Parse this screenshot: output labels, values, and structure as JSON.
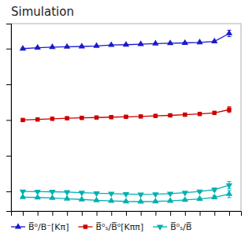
{
  "chart_data": {
    "type": "line",
    "title": "Simulation",
    "x": [
      0,
      1,
      2,
      3,
      4,
      5,
      6,
      7,
      8,
      9,
      10,
      11,
      12,
      13,
      14
    ],
    "xlim": [
      -0.8,
      14.8
    ],
    "ylim": [
      0.09,
      1.14
    ],
    "xticks": [
      0,
      1,
      2,
      3,
      4,
      5,
      6,
      7,
      8,
      9,
      10,
      11,
      12,
      13,
      14
    ],
    "yticks": [
      0.2,
      0.4,
      0.6,
      0.8,
      1.0
    ],
    "tick_labels": false,
    "grid": false,
    "series": [
      {
        "name": "B̅⁰/B⁻[Kπ]",
        "color": "#1a1acd",
        "marker": "triangle-up",
        "values": [
          1.0,
          1.005,
          1.008,
          1.01,
          1.012,
          1.015,
          1.02,
          1.022,
          1.025,
          1.028,
          1.03,
          1.032,
          1.035,
          1.04,
          1.085
        ],
        "yerr": [
          0.004,
          0.004,
          0.004,
          0.004,
          0.004,
          0.004,
          0.004,
          0.004,
          0.004,
          0.004,
          0.004,
          0.004,
          0.004,
          0.005,
          0.018
        ]
      },
      {
        "name": "B̅⁰ₛ/B̅⁰[Kππ]",
        "color": "#cc0000",
        "marker": "square",
        "values": [
          0.6,
          0.603,
          0.607,
          0.61,
          0.612,
          0.614,
          0.616,
          0.618,
          0.62,
          0.623,
          0.626,
          0.63,
          0.634,
          0.64,
          0.658
        ],
        "yerr": [
          0.004,
          0.004,
          0.004,
          0.004,
          0.004,
          0.004,
          0.004,
          0.004,
          0.004,
          0.004,
          0.005,
          0.005,
          0.006,
          0.008,
          0.016
        ]
      },
      {
        "name": "B̅⁰ₛ/B̅",
        "color": "#00b0b0",
        "marker": "triangle-down",
        "values": [
          0.2,
          0.199,
          0.198,
          0.196,
          0.193,
          0.19,
          0.188,
          0.185,
          0.183,
          0.184,
          0.188,
          0.193,
          0.2,
          0.21,
          0.235
        ],
        "yerr": [
          0.003,
          0.003,
          0.003,
          0.003,
          0.003,
          0.003,
          0.003,
          0.003,
          0.003,
          0.003,
          0.004,
          0.005,
          0.006,
          0.009,
          0.02
        ]
      },
      {
        "color": "#00b0b0",
        "marker": "triangle-up",
        "values": [
          0.168,
          0.166,
          0.163,
          0.159,
          0.155,
          0.15,
          0.147,
          0.144,
          0.143,
          0.144,
          0.147,
          0.152,
          0.158,
          0.167,
          0.185
        ],
        "yerr": [
          0.003,
          0.003,
          0.003,
          0.003,
          0.003,
          0.003,
          0.003,
          0.003,
          0.003,
          0.003,
          0.004,
          0.005,
          0.006,
          0.009,
          0.02
        ]
      }
    ]
  }
}
